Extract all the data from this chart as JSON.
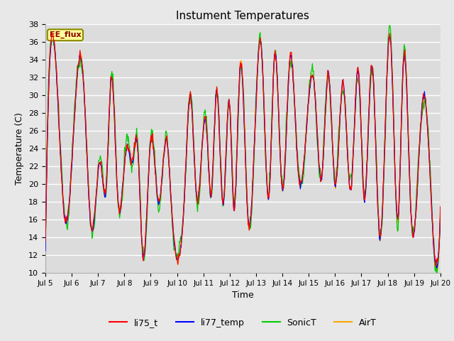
{
  "title": "Instument Temperatures",
  "xlabel": "Time",
  "ylabel": "Temperature (C)",
  "ylim": [
    10,
    38
  ],
  "annotation_text": "EE_flux",
  "annotation_color": "#8B0000",
  "annotation_bg": "#FFFF99",
  "annotation_border": "#8B8B00",
  "colors": {
    "li75_t": "#FF0000",
    "li77_temp": "#0000FF",
    "SonicT": "#00CC00",
    "AirT": "#FFA500"
  },
  "legend_labels": [
    "li75_t",
    "li77_temp",
    "SonicT",
    "AirT"
  ],
  "bg_color": "#E8E8E8",
  "plot_bg": "#DCDCDC",
  "grid_color": "#FFFFFF",
  "x_start": 5,
  "x_end": 20,
  "x_ticks": [
    5,
    6,
    7,
    8,
    9,
    10,
    11,
    12,
    13,
    14,
    15,
    16,
    17,
    18,
    19,
    20
  ],
  "yticks": [
    10,
    12,
    14,
    16,
    18,
    20,
    22,
    24,
    26,
    28,
    30,
    32,
    34,
    36,
    38
  ],
  "num_points": 720,
  "figsize": [
    6.4,
    4.8
  ],
  "dpi": 100
}
